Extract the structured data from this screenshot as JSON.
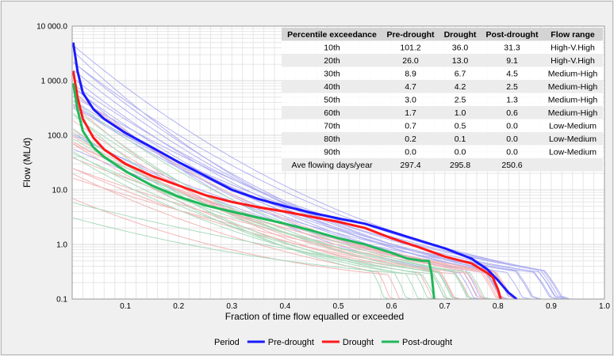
{
  "chart_data": {
    "type": "line",
    "title": "",
    "xlabel": "Fraction of time flow equalled or exceeded",
    "ylabel": "Flow (ML/d)",
    "xlim": [
      0,
      1.0
    ],
    "ylim": [
      0.1,
      10000
    ],
    "y_scale": "log",
    "grid": true,
    "x_ticks": [
      "0.1",
      "0.2",
      "0.3",
      "0.4",
      "0.5",
      "0.6",
      "0.7",
      "0.8",
      "0.9",
      "1.0"
    ],
    "y_ticks": [
      "0.1",
      "1.0",
      "10.0",
      "100.0",
      "1 000.0",
      "10 000.0"
    ],
    "legend": {
      "title": "Period",
      "position": "bottom"
    },
    "series": [
      {
        "name": "Pre-drought",
        "color": "#1a1aff",
        "x": [
          0.002,
          0.01,
          0.02,
          0.04,
          0.06,
          0.1,
          0.15,
          0.2,
          0.25,
          0.3,
          0.35,
          0.4,
          0.45,
          0.5,
          0.55,
          0.6,
          0.65,
          0.7,
          0.75,
          0.78,
          0.8,
          0.82,
          0.835
        ],
        "y": [
          5000,
          1500,
          600,
          300,
          200,
          110,
          60,
          32,
          18,
          10,
          6.8,
          5,
          3.8,
          3.0,
          2.4,
          1.7,
          1.2,
          0.85,
          0.55,
          0.35,
          0.22,
          0.13,
          0.1
        ]
      },
      {
        "name": "Drought",
        "color": "#ff1a1a",
        "x": [
          0.002,
          0.01,
          0.02,
          0.04,
          0.06,
          0.1,
          0.15,
          0.2,
          0.25,
          0.3,
          0.35,
          0.4,
          0.45,
          0.5,
          0.55,
          0.6,
          0.65,
          0.7,
          0.75,
          0.78,
          0.79,
          0.8,
          0.805
        ],
        "y": [
          1500,
          500,
          200,
          90,
          55,
          30,
          18,
          12,
          8,
          6,
          4.8,
          4,
          3.2,
          2.6,
          2,
          1.3,
          0.9,
          0.6,
          0.45,
          0.3,
          0.25,
          0.15,
          0.1
        ]
      },
      {
        "name": "Post-drought",
        "color": "#1fb85a",
        "x": [
          0.002,
          0.01,
          0.02,
          0.04,
          0.06,
          0.1,
          0.15,
          0.2,
          0.25,
          0.3,
          0.35,
          0.4,
          0.45,
          0.5,
          0.55,
          0.6,
          0.63,
          0.66,
          0.67,
          0.675,
          0.68
        ],
        "y": [
          900,
          300,
          120,
          60,
          40,
          22,
          12,
          7.5,
          5.2,
          4.0,
          3.1,
          2.4,
          1.8,
          1.3,
          1.0,
          0.7,
          0.55,
          0.5,
          0.5,
          0.3,
          0.1
        ]
      }
    ]
  },
  "table": {
    "headers": [
      "Percentile exceedance",
      "Pre-drought",
      "Drought",
      "Post-drought",
      "Flow range"
    ],
    "rows": [
      [
        "10th",
        "101.2",
        "36.0",
        "31.3",
        "High-V.High"
      ],
      [
        "20th",
        "26.0",
        "13.0",
        "9.1",
        "High-V.High"
      ],
      [
        "30th",
        "8.9",
        "6.7",
        "4.5",
        "Medium-High"
      ],
      [
        "40th",
        "4.7",
        "4.2",
        "2.5",
        "Medium-High"
      ],
      [
        "50th",
        "3.0",
        "2.5",
        "1.3",
        "Medium-High"
      ],
      [
        "60th",
        "1.7",
        "1.0",
        "0.6",
        "Medium-High"
      ],
      [
        "70th",
        "0.7",
        "0.5",
        "0.0",
        "Low-Medium"
      ],
      [
        "80th",
        "0.2",
        "0.1",
        "0.0",
        "Low-Medium"
      ],
      [
        "90th",
        "0.0",
        "0.0",
        "0.0",
        "Low-Medium"
      ],
      [
        "Ave flowing days/year",
        "297.4",
        "295.8",
        "250.6",
        ""
      ]
    ]
  },
  "colors": {
    "plot_bg": "#ffffff",
    "grid": "#e6e6e6",
    "frame_bg": "#f0f0f0",
    "table_header_bg": "#d4d4d4",
    "table_row_alt": "#ececec",
    "faint_blue": "#9a9aee",
    "faint_red": "#f0a0a0",
    "faint_green": "#90d0a8"
  }
}
